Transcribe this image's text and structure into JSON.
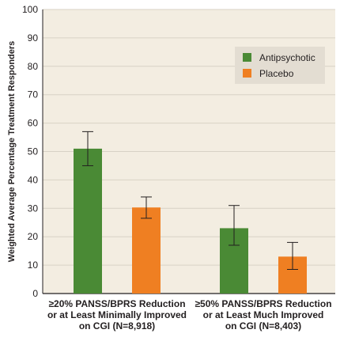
{
  "chart_data": {
    "type": "bar",
    "ylabel": "Weighted Average Percentage Treatment Responders",
    "ylim": [
      0,
      100
    ],
    "yticks": [
      0,
      10,
      20,
      30,
      40,
      50,
      60,
      70,
      80,
      90,
      100
    ],
    "grid": true,
    "legend_position": "top-right",
    "categories": [
      [
        "≥20% PANSS/BPRS Reduction",
        "or at Least Minimally Improved",
        "on CGI (N=8,918)"
      ],
      [
        "≥50% PANSS/BPRS Reduction",
        "or at Least Much Improved",
        "on CGI (N=8,403)"
      ]
    ],
    "series": [
      {
        "name": "Antipsychotic",
        "color": "#4a8a35",
        "values": [
          51,
          23
        ],
        "error_low": [
          45,
          17
        ],
        "error_high": [
          57,
          31
        ]
      },
      {
        "name": "Placebo",
        "color": "#ef7f22",
        "values": [
          30.3,
          13
        ],
        "error_low": [
          26.5,
          8.5
        ],
        "error_high": [
          34,
          18
        ]
      }
    ],
    "colors": {
      "plot_background": "#f3ede1",
      "gridline": "#d8d2c5"
    }
  }
}
